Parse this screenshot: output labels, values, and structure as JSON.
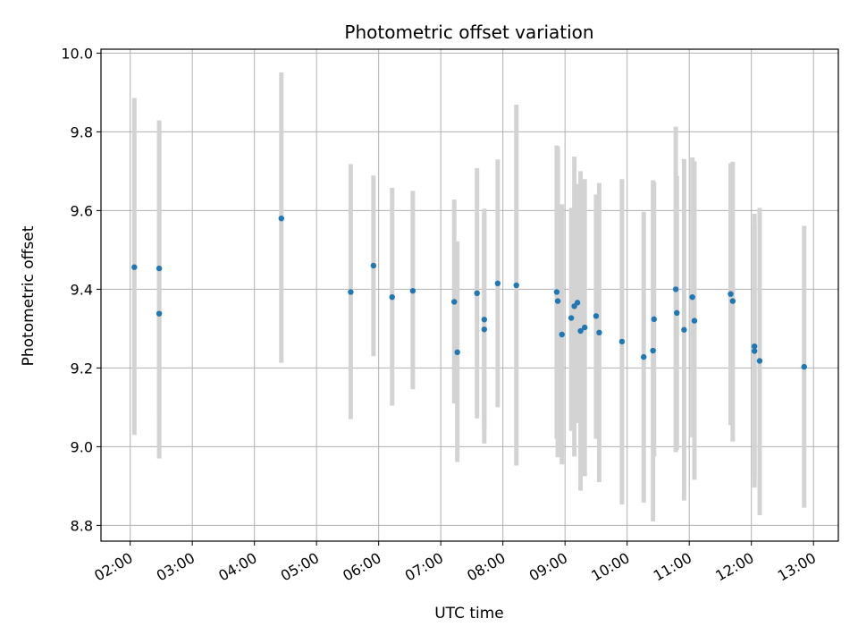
{
  "chart_data": {
    "type": "scatter",
    "title": "Photometric offset variation",
    "xlabel": "UTC time",
    "ylabel": "Photometric offset",
    "xlim_hours": [
      1.53,
      13.4
    ],
    "ylim": [
      8.76,
      10.01
    ],
    "x_ticks": [
      "02:00",
      "03:00",
      "04:00",
      "05:00",
      "06:00",
      "07:00",
      "08:00",
      "09:00",
      "10:00",
      "11:00",
      "12:00",
      "13:00"
    ],
    "y_ticks": [
      "8.8",
      "9.0",
      "9.2",
      "9.4",
      "9.6",
      "9.8",
      "10.0"
    ],
    "grid": true,
    "colors": {
      "point": "#1f77b4",
      "errorbar": "#d3d3d3",
      "grid": "#b0b0b0",
      "axes": "#000000"
    },
    "points": [
      {
        "t": "02:04",
        "y": 9.456,
        "lo": 9.03,
        "hi": 9.886
      },
      {
        "t": "02:28",
        "y": 9.453,
        "lo": 9.08,
        "hi": 9.829
      },
      {
        "t": "02:28",
        "y": 9.338,
        "lo": 8.97,
        "hi": 9.8
      },
      {
        "t": "04:26",
        "y": 9.58,
        "lo": 9.213,
        "hi": 9.951
      },
      {
        "t": "05:33",
        "y": 9.393,
        "lo": 9.07,
        "hi": 9.718
      },
      {
        "t": "05:55",
        "y": 9.46,
        "lo": 9.23,
        "hi": 9.689
      },
      {
        "t": "06:13",
        "y": 9.38,
        "lo": 9.104,
        "hi": 9.658
      },
      {
        "t": "06:33",
        "y": 9.396,
        "lo": 9.146,
        "hi": 9.65
      },
      {
        "t": "07:13",
        "y": 9.368,
        "lo": 9.11,
        "hi": 9.628
      },
      {
        "t": "07:16",
        "y": 9.24,
        "lo": 8.961,
        "hi": 9.522
      },
      {
        "t": "07:35",
        "y": 9.39,
        "lo": 9.072,
        "hi": 9.708
      },
      {
        "t": "07:42",
        "y": 9.323,
        "lo": 9.04,
        "hi": 9.605
      },
      {
        "t": "07:42",
        "y": 9.298,
        "lo": 9.008,
        "hi": 9.59
      },
      {
        "t": "07:55",
        "y": 9.415,
        "lo": 9.1,
        "hi": 9.73
      },
      {
        "t": "08:13",
        "y": 9.41,
        "lo": 8.952,
        "hi": 9.869
      },
      {
        "t": "08:52",
        "y": 9.393,
        "lo": 9.02,
        "hi": 9.765
      },
      {
        "t": "08:53",
        "y": 9.37,
        "lo": 8.973,
        "hi": 9.762
      },
      {
        "t": "08:57",
        "y": 9.285,
        "lo": 8.955,
        "hi": 9.616
      },
      {
        "t": "09:06",
        "y": 9.327,
        "lo": 9.04,
        "hi": 9.607
      },
      {
        "t": "09:09",
        "y": 9.357,
        "lo": 8.975,
        "hi": 9.737
      },
      {
        "t": "09:12",
        "y": 9.366,
        "lo": 9.06,
        "hi": 9.667
      },
      {
        "t": "09:15",
        "y": 9.294,
        "lo": 8.888,
        "hi": 9.7
      },
      {
        "t": "09:19",
        "y": 9.303,
        "lo": 8.925,
        "hi": 9.68
      },
      {
        "t": "09:30",
        "y": 9.332,
        "lo": 9.02,
        "hi": 9.641
      },
      {
        "t": "09:33",
        "y": 9.29,
        "lo": 8.91,
        "hi": 9.67
      },
      {
        "t": "09:55",
        "y": 9.267,
        "lo": 8.853,
        "hi": 9.68
      },
      {
        "t": "10:16",
        "y": 9.228,
        "lo": 8.858,
        "hi": 9.597
      },
      {
        "t": "10:25",
        "y": 9.244,
        "lo": 8.81,
        "hi": 9.677
      },
      {
        "t": "10:26",
        "y": 9.324,
        "lo": 8.975,
        "hi": 9.673
      },
      {
        "t": "10:47",
        "y": 9.4,
        "lo": 8.986,
        "hi": 9.813
      },
      {
        "t": "10:48",
        "y": 9.34,
        "lo": 8.992,
        "hi": 9.688
      },
      {
        "t": "10:55",
        "y": 9.297,
        "lo": 8.863,
        "hi": 9.731
      },
      {
        "t": "11:03",
        "y": 9.38,
        "lo": 9.024,
        "hi": 9.735
      },
      {
        "t": "11:05",
        "y": 9.32,
        "lo": 8.916,
        "hi": 9.725
      },
      {
        "t": "11:40",
        "y": 9.388,
        "lo": 9.055,
        "hi": 9.72
      },
      {
        "t": "11:42",
        "y": 9.37,
        "lo": 9.013,
        "hi": 9.724
      },
      {
        "t": "12:03",
        "y": 9.255,
        "lo": 8.896,
        "hi": 9.592
      },
      {
        "t": "12:03",
        "y": 9.243,
        "lo": 8.93,
        "hi": 9.558
      },
      {
        "t": "12:08",
        "y": 9.218,
        "lo": 8.826,
        "hi": 9.607
      },
      {
        "t": "12:51",
        "y": 9.203,
        "lo": 8.845,
        "hi": 9.561
      }
    ]
  }
}
